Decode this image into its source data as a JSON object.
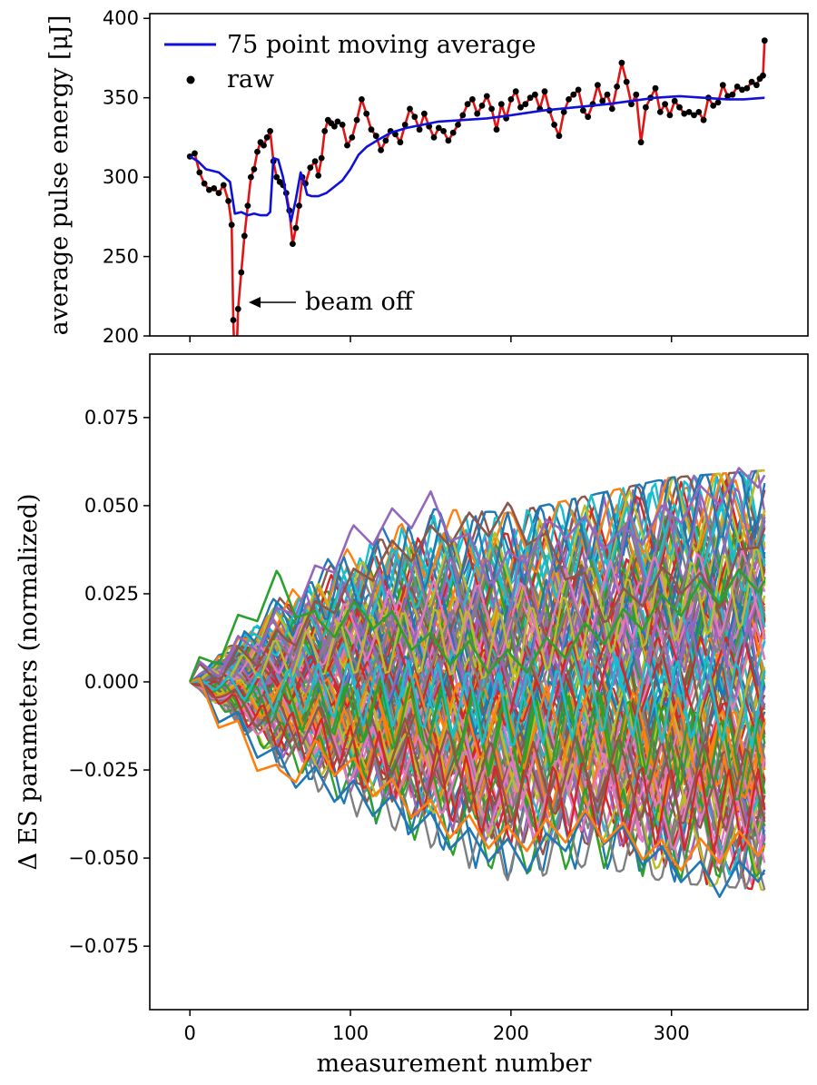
{
  "chart_data": [
    {
      "type": "line",
      "panel": "top",
      "ylabel": "average pulse energy [μJ]",
      "xlabel": "",
      "xlim": [
        -25,
        385
      ],
      "ylim": [
        200,
        403
      ],
      "yticks": [
        200,
        250,
        300,
        350,
        400
      ],
      "ytick_labels": [
        "200",
        "250",
        "300",
        "350",
        "400"
      ],
      "xticks": [
        0,
        100,
        200,
        300
      ],
      "show_x_tick_labels": false,
      "grid": false,
      "legend": {
        "position": "top-left",
        "entries": [
          "75 point moving average",
          "raw"
        ]
      },
      "series": [
        {
          "name": "75 point moving average",
          "style": "line",
          "color": "#1010d8",
          "x": [
            0,
            5,
            10,
            18,
            25,
            28,
            32,
            36,
            40,
            44,
            48,
            50,
            52,
            55,
            58,
            61,
            63,
            66,
            69,
            71,
            73,
            76,
            80,
            85,
            90,
            95,
            100,
            105,
            110,
            118,
            125,
            135,
            145,
            155,
            170,
            185,
            200,
            220,
            240,
            260,
            275,
            290,
            305,
            320,
            335,
            345,
            358
          ],
          "y": [
            313,
            310,
            305,
            303,
            297,
            277,
            278,
            276,
            277,
            276,
            276,
            278,
            312,
            311,
            300,
            282,
            272,
            286,
            303,
            297,
            289,
            288,
            288,
            290,
            294,
            298,
            305,
            314,
            319,
            324,
            328,
            331,
            333,
            335,
            336,
            337,
            339,
            342,
            344,
            346,
            348,
            350,
            351,
            350,
            349,
            349,
            350
          ]
        },
        {
          "name": "raw",
          "style": "line+markers",
          "color": "#e01515",
          "marker_color": "#000000",
          "x": [
            0,
            3,
            6,
            9,
            12,
            15,
            18,
            21,
            24,
            26,
            27,
            28,
            29,
            30,
            32,
            34,
            36,
            38,
            40,
            42,
            44,
            46,
            48,
            50,
            52,
            54,
            56,
            58,
            60,
            62,
            64,
            66,
            68,
            70,
            72,
            75,
            78,
            80,
            82,
            84,
            86,
            88,
            90,
            92,
            95,
            98,
            101,
            104,
            107,
            110,
            113,
            116,
            119,
            122,
            125,
            128,
            131,
            134,
            137,
            140,
            143,
            146,
            149,
            152,
            155,
            158,
            161,
            164,
            167,
            170,
            173,
            176,
            179,
            182,
            185,
            188,
            191,
            194,
            197,
            200,
            203,
            206,
            209,
            212,
            215,
            218,
            221,
            224,
            227,
            230,
            233,
            236,
            239,
            242,
            245,
            248,
            251,
            254,
            257,
            260,
            263,
            266,
            269,
            272,
            275,
            278,
            281,
            284,
            287,
            290,
            293,
            296,
            299,
            302,
            305,
            308,
            311,
            314,
            317,
            320,
            323,
            326,
            329,
            332,
            335,
            338,
            341,
            344,
            347,
            350,
            353,
            355,
            357,
            358
          ],
          "y": [
            313,
            315,
            303,
            296,
            292,
            293,
            290,
            295,
            285,
            270,
            210,
            180,
            186,
            217,
            240,
            263,
            282,
            300,
            305,
            316,
            322,
            320,
            325,
            329,
            310,
            300,
            297,
            295,
            290,
            279,
            258,
            268,
            282,
            300,
            296,
            306,
            310,
            301,
            312,
            329,
            336,
            334,
            332,
            335,
            333,
            320,
            325,
            336,
            349,
            340,
            330,
            326,
            317,
            323,
            329,
            327,
            322,
            333,
            343,
            338,
            330,
            340,
            332,
            325,
            331,
            329,
            323,
            328,
            333,
            339,
            346,
            349,
            340,
            345,
            351,
            343,
            330,
            346,
            337,
            349,
            354,
            344,
            346,
            350,
            352,
            343,
            354,
            342,
            333,
            326,
            341,
            349,
            352,
            355,
            342,
            338,
            346,
            358,
            348,
            352,
            343,
            357,
            372,
            360,
            346,
            352,
            322,
            344,
            350,
            356,
            341,
            346,
            339,
            348,
            344,
            340,
            341,
            339,
            341,
            336,
            350,
            345,
            347,
            358,
            351,
            352,
            357,
            355,
            356,
            360,
            358,
            362,
            364,
            386
          ]
        }
      ],
      "annotations": [
        {
          "text": "beam off",
          "arrow_to": [
            35,
            222
          ]
        }
      ]
    },
    {
      "type": "line",
      "panel": "bottom",
      "title": "",
      "xlabel": "measurement number",
      "ylabel": "Δ ES parameters (normalized)",
      "xlim": [
        -25,
        385
      ],
      "ylim": [
        -0.093,
        0.093
      ],
      "xticks": [
        0,
        100,
        200,
        300
      ],
      "xtick_labels": [
        "0",
        "100",
        "200",
        "300"
      ],
      "yticks": [
        -0.075,
        -0.05,
        -0.025,
        0.0,
        0.025,
        0.05,
        0.075
      ],
      "ytick_labels": [
        "−0.075",
        "−0.050",
        "−0.025",
        "0.000",
        "0.025",
        "0.050",
        "0.075"
      ],
      "grid": false,
      "legend": null,
      "palette": [
        "#1f77b4",
        "#ff7f0e",
        "#2ca02c",
        "#d62728",
        "#9467bd",
        "#8c564b",
        "#e377c2",
        "#7f7f7f",
        "#bcbd22",
        "#17becf"
      ],
      "description_of_series": "about 120 zigzag random-walk traces, one per ES parameter, all starting at 0 and spreading over time",
      "series_count": 120,
      "x_range": [
        0,
        358
      ],
      "envelope": {
        "x": [
          0,
          50,
          100,
          150,
          200,
          250,
          300,
          358
        ],
        "max": [
          0.0,
          0.027,
          0.042,
          0.049,
          0.048,
          0.053,
          0.058,
          0.06
        ],
        "min": [
          0.0,
          -0.028,
          -0.042,
          -0.05,
          -0.057,
          -0.052,
          -0.057,
          -0.059
        ]
      },
      "highlighted_series": [
        {
          "color": "#8c564b",
          "x": [
            0,
            60,
            120,
            165,
            200,
            230,
            260,
            300,
            330,
            358
          ],
          "y": [
            0.0,
            0.012,
            0.035,
            0.043,
            0.047,
            0.035,
            0.02,
            0.03,
            0.025,
            0.045
          ]
        },
        {
          "color": "#9467bd",
          "x": [
            0,
            50,
            100,
            150,
            190,
            230,
            270,
            310,
            358
          ],
          "y": [
            0.0,
            0.015,
            0.04,
            0.05,
            0.03,
            0.045,
            0.04,
            0.05,
            0.06
          ]
        },
        {
          "color": "#1f77b4",
          "x": [
            0,
            60,
            120,
            170,
            210,
            250,
            290,
            330,
            358
          ],
          "y": [
            0.0,
            -0.025,
            -0.035,
            -0.045,
            -0.05,
            -0.04,
            -0.05,
            -0.057,
            -0.052
          ]
        },
        {
          "color": "#ff7f0e",
          "x": [
            0,
            30,
            55,
            80,
            120,
            160,
            200,
            250,
            300,
            358
          ],
          "y": [
            0.0,
            -0.015,
            -0.028,
            -0.02,
            -0.03,
            -0.04,
            -0.045,
            -0.04,
            -0.05,
            -0.045
          ]
        },
        {
          "color": "#2ca02c",
          "x": [
            0,
            30,
            55,
            80,
            110,
            150,
            200,
            260,
            320,
            358
          ],
          "y": [
            0.0,
            0.015,
            0.028,
            0.015,
            0.02,
            0.01,
            0.005,
            0.015,
            0.025,
            0.03
          ]
        }
      ]
    }
  ]
}
